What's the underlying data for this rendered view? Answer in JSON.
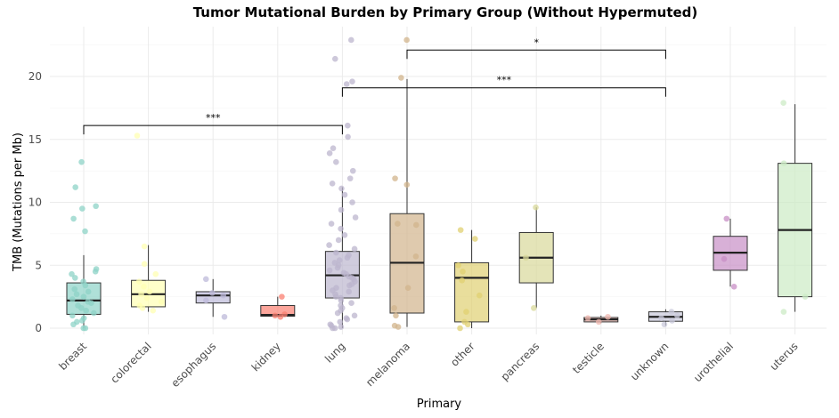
{
  "chart_data": {
    "type": "box",
    "title": "Tumor Mutational Burden by Primary Group (Without Hypermuted)",
    "xlabel": "Primary",
    "ylabel": "TMB (Mutations per Mb)",
    "ylim": [
      -0.4,
      24
    ],
    "y_ticks": [
      0,
      5,
      10,
      15,
      20
    ],
    "grid": true,
    "categories": [
      "breast",
      "colorectal",
      "esophagus",
      "kidney",
      "lung",
      "melanoma",
      "other",
      "pancreas",
      "testicle",
      "unknown",
      "urothelial",
      "uterus"
    ],
    "colors": [
      "#8DD3C7",
      "#FFFFB3",
      "#BEBADA",
      "#FB8072",
      "#BCB6CE",
      "#D2B48C",
      "#E0D072",
      "#D8D89A",
      "#F0B8B0",
      "#C9C9DB",
      "#C88FC6",
      "#CCEBC5"
    ],
    "boxes": [
      {
        "category": "breast",
        "whisker_low": 0.0,
        "q1": 1.1,
        "median": 2.2,
        "q3": 3.6,
        "whisker_high": 5.8
      },
      {
        "category": "colorectal",
        "whisker_low": 1.3,
        "q1": 1.7,
        "median": 2.7,
        "q3": 3.8,
        "whisker_high": 6.6
      },
      {
        "category": "esophagus",
        "whisker_low": 0.9,
        "q1": 2.0,
        "median": 2.6,
        "q3": 2.9,
        "whisker_high": 3.9
      },
      {
        "category": "kidney",
        "whisker_low": 0.9,
        "q1": 0.95,
        "median": 1.05,
        "q3": 1.8,
        "whisker_high": 2.5
      },
      {
        "category": "lung",
        "whisker_low": 0.0,
        "q1": 2.4,
        "median": 4.2,
        "q3": 6.1,
        "whisker_high": 11.2
      },
      {
        "category": "melanoma",
        "whisker_low": 0.1,
        "q1": 1.2,
        "median": 5.2,
        "q3": 9.1,
        "whisker_high": 19.8
      },
      {
        "category": "other",
        "whisker_low": 0.0,
        "q1": 0.5,
        "median": 4.0,
        "q3": 5.2,
        "whisker_high": 7.8
      },
      {
        "category": "pancreas",
        "whisker_low": 1.6,
        "q1": 3.6,
        "median": 5.6,
        "q3": 7.6,
        "whisker_high": 9.6
      },
      {
        "category": "testicle",
        "whisker_low": 0.4,
        "q1": 0.5,
        "median": 0.7,
        "q3": 0.85,
        "whisker_high": 1.0
      },
      {
        "category": "unknown",
        "whisker_low": 0.2,
        "q1": 0.55,
        "median": 0.9,
        "q3": 1.3,
        "whisker_high": 1.5
      },
      {
        "category": "urothelial",
        "whisker_low": 3.3,
        "q1": 4.6,
        "median": 6.0,
        "q3": 7.3,
        "whisker_high": 8.7
      },
      {
        "category": "uterus",
        "whisker_low": 1.3,
        "q1": 2.5,
        "median": 7.8,
        "q3": 13.1,
        "whisker_high": 17.8
      }
    ],
    "points": [
      {
        "category": "breast",
        "values": [
          0.0,
          0.0,
          0.3,
          0.5,
          0.6,
          0.8,
          1.0,
          1.2,
          1.4,
          1.6,
          1.8,
          2.0,
          2.1,
          2.3,
          2.5,
          2.7,
          2.9,
          3.1,
          3.4,
          3.7,
          4.0,
          4.3,
          4.5,
          4.7,
          8.7,
          9.5,
          9.7,
          11.2,
          13.2,
          7.7
        ]
      },
      {
        "category": "colorectal",
        "values": [
          1.4,
          1.6,
          1.8,
          2.1,
          2.4,
          2.7,
          2.9,
          3.3,
          3.7,
          4.3,
          5.1,
          6.5,
          15.3
        ]
      },
      {
        "category": "esophagus",
        "values": [
          0.9,
          2.2,
          2.6,
          2.8,
          3.9
        ]
      },
      {
        "category": "kidney",
        "values": [
          0.9,
          1.0,
          1.1,
          2.5
        ]
      },
      {
        "category": "lung",
        "values": [
          0.0,
          0.0,
          0.1,
          0.2,
          0.3,
          0.5,
          0.7,
          0.8,
          1.0,
          1.2,
          1.4,
          1.6,
          1.8,
          2.0,
          2.2,
          2.4,
          2.5,
          2.7,
          2.9,
          3.0,
          3.2,
          3.4,
          3.5,
          3.7,
          3.9,
          4.0,
          4.1,
          4.3,
          4.4,
          4.6,
          4.8,
          5.0,
          5.2,
          5.4,
          5.6,
          5.8,
          6.0,
          6.3,
          6.6,
          7.0,
          7.4,
          7.9,
          8.3,
          8.8,
          9.4,
          10.0,
          10.6,
          11.1,
          11.5,
          11.9,
          12.5,
          13.2,
          13.9,
          14.3,
          15.2,
          16.1,
          19.4,
          19.6,
          21.4,
          22.9
        ]
      },
      {
        "category": "melanoma",
        "values": [
          0.1,
          0.2,
          1.0,
          1.6,
          3.2,
          5.7,
          8.2,
          8.3,
          11.4,
          11.9,
          19.9,
          22.9
        ]
      },
      {
        "category": "other",
        "values": [
          0.0,
          0.3,
          0.5,
          1.3,
          2.6,
          3.8,
          4.5,
          5.0,
          7.1,
          7.8
        ]
      },
      {
        "category": "pancreas",
        "values": [
          1.6,
          5.6,
          9.6
        ]
      },
      {
        "category": "testicle",
        "values": [
          0.5,
          0.8,
          0.9
        ]
      },
      {
        "category": "unknown",
        "values": [
          0.3,
          0.6,
          0.8,
          1.0,
          1.3
        ]
      },
      {
        "category": "urothelial",
        "values": [
          3.3,
          5.5,
          8.7
        ]
      },
      {
        "category": "uterus",
        "values": [
          1.3,
          2.5,
          13.1,
          17.9
        ]
      }
    ],
    "significance": [
      {
        "from": "breast",
        "to": "lung",
        "y": 16.1,
        "label": "***"
      },
      {
        "from": "lung",
        "to": "unknown",
        "y": 19.1,
        "label": "***"
      },
      {
        "from": "melanoma",
        "to": "unknown",
        "y": 22.1,
        "label": "*"
      }
    ]
  }
}
